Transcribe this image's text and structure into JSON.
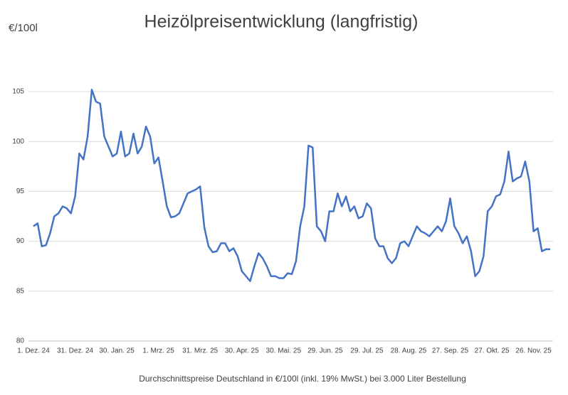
{
  "chart_data": {
    "type": "line",
    "title": "Heizölpreisentwicklung (langfristig)",
    "y_label": "€/100l",
    "caption": "Durchschnittspreise Deutschland in €/100l (inkl. 19% MwSt.) bei 3.000 Liter Bestellung",
    "categories": [
      "1. Dez. 24",
      null,
      null,
      null,
      null,
      null,
      null,
      null,
      null,
      null,
      "31. Dez. 24",
      null,
      null,
      null,
      null,
      null,
      null,
      null,
      null,
      null,
      "30. Jan. 25",
      null,
      null,
      null,
      null,
      null,
      null,
      null,
      null,
      null,
      "1. Mrz. 25",
      null,
      null,
      null,
      null,
      null,
      null,
      null,
      null,
      null,
      "31. Mrz. 25",
      null,
      null,
      null,
      null,
      null,
      null,
      null,
      null,
      null,
      "30. Apr. 25",
      null,
      null,
      null,
      null,
      null,
      null,
      null,
      null,
      null,
      "30. Mai. 25",
      null,
      null,
      null,
      null,
      null,
      null,
      null,
      null,
      null,
      "29. Jun. 25",
      null,
      null,
      null,
      null,
      null,
      null,
      null,
      null,
      null,
      "29. Jul. 25",
      null,
      null,
      null,
      null,
      null,
      null,
      null,
      null,
      null,
      "28. Aug. 25",
      null,
      null,
      null,
      null,
      null,
      null,
      null,
      null,
      null,
      "27. Sep. 25",
      null,
      null,
      null,
      null,
      null,
      null,
      null,
      null,
      null,
      "27. Okt. 25",
      null,
      null,
      null,
      null,
      null,
      null,
      null,
      null,
      null,
      "26. Nov. 25",
      null,
      null,
      null,
      null
    ],
    "values": [
      91.5,
      91.8,
      89.5,
      89.6,
      90.8,
      92.5,
      92.8,
      93.5,
      93.3,
      92.8,
      94.5,
      98.8,
      98.2,
      100.5,
      105.2,
      104,
      103.8,
      100.5,
      99.5,
      98.5,
      98.8,
      101,
      98.5,
      98.8,
      100.8,
      98.8,
      99.5,
      101.5,
      100.5,
      97.8,
      98.4,
      96,
      93.5,
      92.4,
      92.5,
      92.8,
      93.8,
      94.8,
      95,
      95.2,
      95.5,
      91.4,
      89.5,
      88.9,
      89,
      89.8,
      89.8,
      89,
      89.3,
      88.5,
      87,
      86.5,
      86,
      87.5,
      88.8,
      88.3,
      87.5,
      86.5,
      86.5,
      86.3,
      86.3,
      86.8,
      86.7,
      88,
      91.5,
      93.5,
      99.6,
      99.4,
      91.5,
      91,
      90,
      93,
      93,
      94.8,
      93.5,
      94.5,
      93,
      93.5,
      92.3,
      92.5,
      93.8,
      93.3,
      90.3,
      89.5,
      89.5,
      88.3,
      87.8,
      88.3,
      89.8,
      90,
      89.5,
      90.5,
      91.5,
      91,
      90.8,
      90.5,
      91,
      91.5,
      91,
      92,
      94.3,
      91.5,
      90.8,
      89.8,
      90.5,
      89,
      86.5,
      87,
      88.5,
      93,
      93.5,
      94.5,
      94.7,
      96,
      99,
      96,
      96.3,
      96.5,
      98,
      96,
      91,
      91.3,
      89,
      89.2,
      89.2
    ],
    "color": "#4472c4",
    "ylim": [
      80,
      105
    ],
    "yticks": [
      80,
      85,
      90,
      95,
      100,
      105
    ],
    "grid": true
  }
}
